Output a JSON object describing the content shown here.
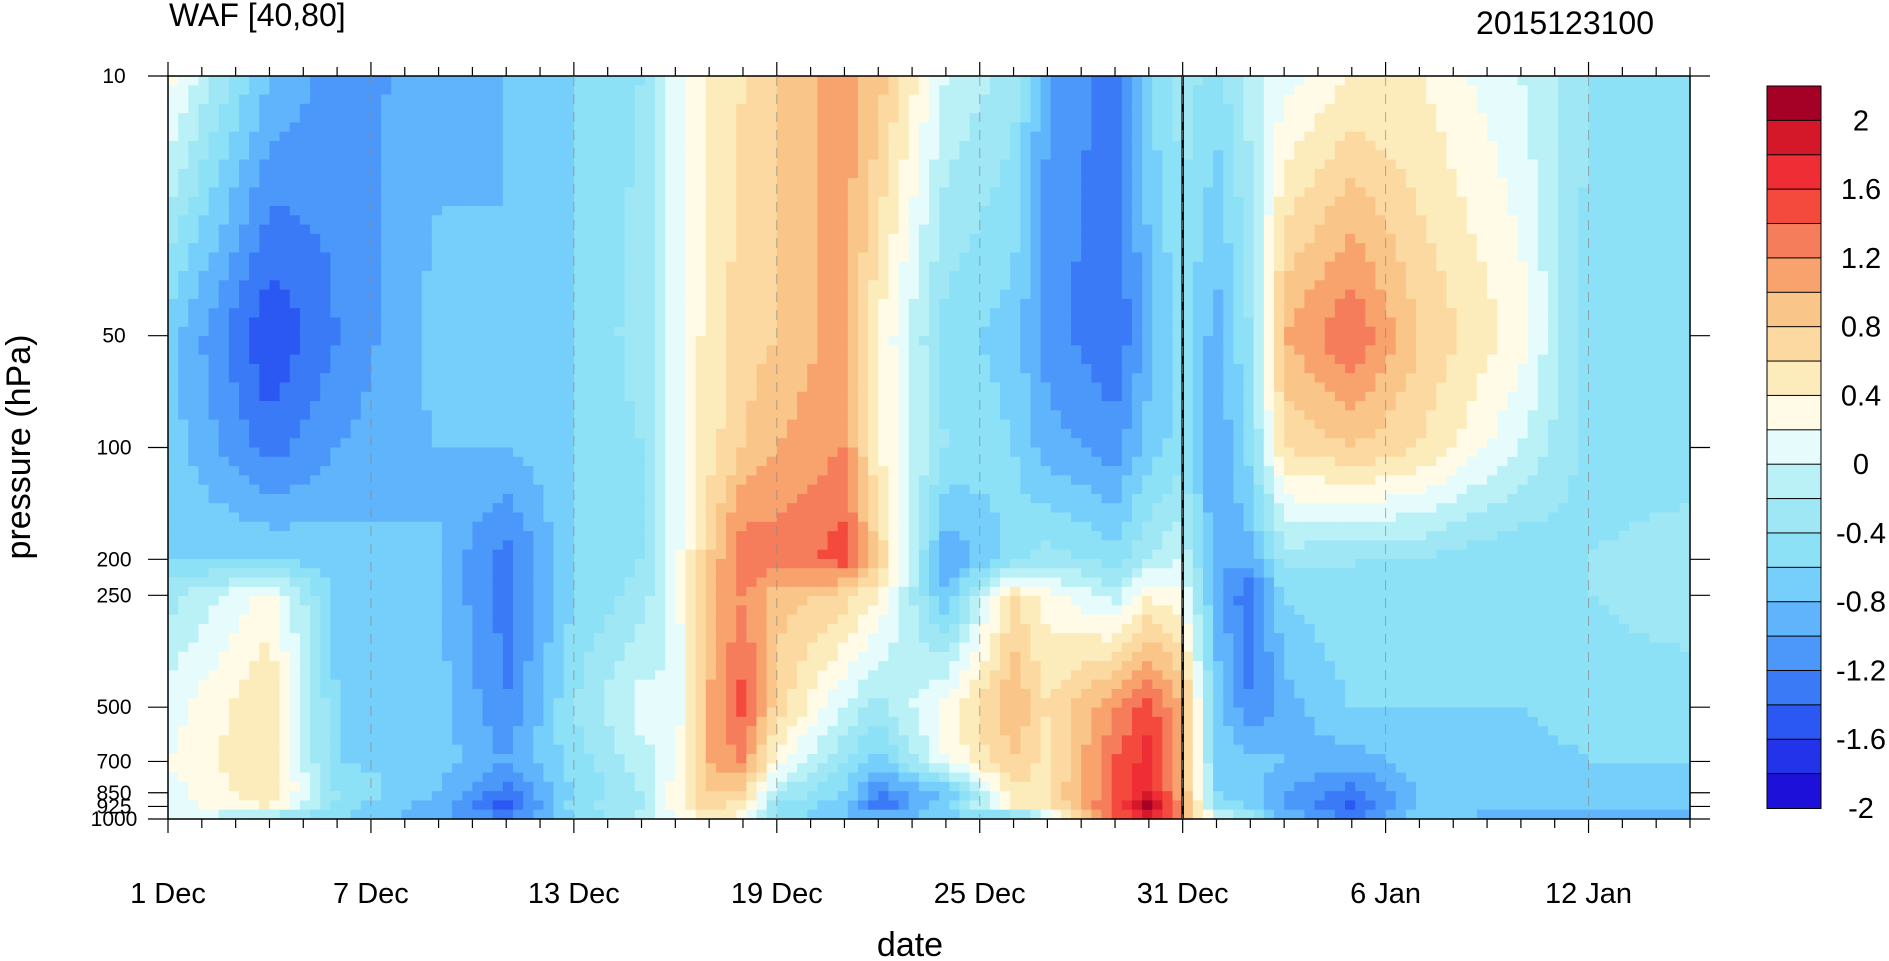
{
  "chart_data": {
    "type": "heatmap",
    "title": "WAF [40,80]",
    "subtitle": "2015123100",
    "xlabel": "date",
    "ylabel": "pressure (hPa)",
    "x_ticks": [
      "1 Dec",
      "7 Dec",
      "13 Dec",
      "19 Dec",
      "25 Dec",
      "31 Dec",
      "6 Jan",
      "12 Jan"
    ],
    "x_range_days": [
      0,
      45
    ],
    "y_ticks": [
      "10",
      "50",
      "100",
      "200",
      "250",
      "500",
      "700",
      "850",
      "925",
      "1000"
    ],
    "y_range_hpa": [
      10,
      1000
    ],
    "y_scale": "log",
    "marked_date": "31 Dec",
    "colorbar": {
      "labels": [
        "2",
        "1.6",
        "1.2",
        "0.8",
        "0.4",
        "0",
        "-0.4",
        "-0.8",
        "-1.2",
        "-1.6",
        "-2"
      ],
      "levels": [
        2.2,
        2.0,
        1.8,
        1.6,
        1.4,
        1.2,
        1.0,
        0.8,
        0.6,
        0.4,
        0.2,
        0.0,
        -0.2,
        -0.4,
        -0.6,
        -0.8,
        -1.0,
        -1.2,
        -1.4,
        -1.6,
        -1.8,
        -2.0,
        -2.2
      ],
      "colors": [
        "#a50026",
        "#d4182a",
        "#ee2d34",
        "#f44a3d",
        "#f67d5c",
        "#f8a26d",
        "#f9c589",
        "#fbd9a0",
        "#fcecbb",
        "#fffbe6",
        "#e6fcfc",
        "#b9f1f6",
        "#a0e7f5",
        "#8de1f7",
        "#76cffb",
        "#5fb4fb",
        "#4b98fa",
        "#3a7af7",
        "#2b58f2",
        "#2233ea",
        "#1d10d9"
      ]
    },
    "sample_levels": [
      1000,
      925,
      850,
      700,
      500,
      250,
      200,
      100,
      50,
      10
    ],
    "days": [
      0,
      3,
      5,
      8,
      10,
      12,
      14,
      15,
      16,
      17,
      18,
      20,
      21,
      23,
      25,
      26,
      28,
      29,
      30,
      31,
      32,
      33,
      35,
      37,
      40,
      42,
      45
    ],
    "values": [
      [
        0.1,
        -0.4,
        -0.6,
        -1.0,
        -1.1,
        -0.6,
        -0.1,
        0.2,
        0.5,
        0.2,
        -0.5,
        -0.7,
        -0.8,
        -0.7,
        -0.9,
        0.0,
        1.3,
        1.9,
        1.0,
        0.3,
        -0.3,
        -0.8,
        -1.2,
        -0.7,
        -0.9,
        -0.9,
        -0.9
      ],
      [
        0.1,
        0.4,
        -0.5,
        -0.9,
        -1.5,
        -0.5,
        -0.2,
        0.3,
        0.7,
        0.5,
        -0.4,
        -0.8,
        -1.4,
        -0.6,
        0.4,
        0.5,
        1.5,
        2.1,
        1.2,
        -0.5,
        -0.6,
        -1.0,
        -1.5,
        -0.7,
        -0.8,
        -0.8,
        -0.8
      ],
      [
        0.1,
        0.6,
        -0.4,
        -0.8,
        -1.3,
        -0.6,
        -0.2,
        0.3,
        0.8,
        0.7,
        -0.2,
        -0.6,
        -1.2,
        -0.8,
        0.5,
        0.6,
        1.4,
        1.8,
        1.0,
        -0.6,
        -0.7,
        -1.0,
        -1.3,
        -0.8,
        -0.7,
        -0.7,
        -0.7
      ],
      [
        0.2,
        0.6,
        -0.6,
        -0.7,
        -1.0,
        -0.5,
        -0.1,
        0.2,
        1.0,
        1.2,
        0.3,
        -0.4,
        -0.7,
        0.2,
        0.8,
        0.5,
        1.4,
        1.7,
        1.0,
        -0.6,
        -0.7,
        -0.8,
        -0.9,
        -0.7,
        -0.7,
        -0.6,
        -0.6
      ],
      [
        0.1,
        0.6,
        -0.6,
        -0.7,
        -1.2,
        -0.4,
        0.1,
        0.0,
        1.0,
        1.5,
        0.7,
        0.0,
        -0.3,
        0.3,
        1.0,
        0.6,
        1.2,
        1.5,
        1.0,
        -0.7,
        -1.2,
        -0.9,
        -0.6,
        -0.6,
        -0.6,
        -0.5,
        -0.5
      ],
      [
        -0.3,
        0.3,
        -0.7,
        -0.8,
        -1.3,
        -0.6,
        -0.3,
        0.1,
        0.9,
        1.2,
        0.9,
        0.7,
        0.4,
        -0.8,
        0.6,
        0.3,
        -0.1,
        0.4,
        0.2,
        -0.9,
        -1.4,
        -0.6,
        -0.4,
        -0.5,
        -0.6,
        -0.4,
        -0.3
      ],
      [
        -0.6,
        -0.6,
        -0.7,
        -0.8,
        -1.3,
        -0.6,
        -0.4,
        0.1,
        0.8,
        1.4,
        1.3,
        1.5,
        0.8,
        -1.0,
        -0.5,
        -0.3,
        -0.5,
        -0.2,
        0.0,
        -1.0,
        -0.9,
        -0.3,
        -0.4,
        -0.4,
        -0.6,
        -0.4,
        -0.3
      ],
      [
        -0.7,
        -1.3,
        -1.0,
        -0.8,
        -0.8,
        -0.6,
        -0.4,
        0.1,
        0.5,
        0.8,
        1.0,
        1.2,
        0.4,
        -0.4,
        -0.6,
        -0.9,
        -1.1,
        -0.7,
        -0.5,
        -1.0,
        -0.5,
        0.6,
        0.8,
        0.6,
        0.0,
        -0.5,
        -0.5
      ],
      [
        -0.7,
        -1.6,
        -1.2,
        -0.7,
        -0.8,
        -0.6,
        -0.3,
        0.1,
        0.5,
        0.7,
        0.8,
        1.1,
        0.4,
        -0.5,
        -0.7,
        -1.1,
        -1.4,
        -0.9,
        -0.5,
        -0.9,
        -0.4,
        1.0,
        1.4,
        0.8,
        0.3,
        -0.5,
        -0.5
      ],
      [
        0.3,
        -0.8,
        -1.1,
        -0.9,
        -0.8,
        -0.6,
        -0.4,
        0.1,
        0.4,
        0.6,
        0.8,
        1.1,
        0.9,
        0.0,
        -0.3,
        -1.0,
        -1.3,
        -0.6,
        -0.3,
        -0.5,
        -0.1,
        0.1,
        0.4,
        0.4,
        0.0,
        -0.4,
        -0.4
      ]
    ]
  }
}
